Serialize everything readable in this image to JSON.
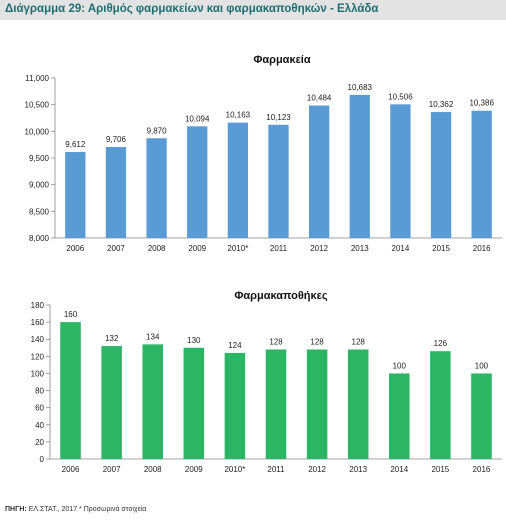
{
  "header": {
    "title": "Διάγραμμα 29: Αριθμός φαρμακείων και φαρμακαποθηκών - Ελλάδα"
  },
  "footer": {
    "source_label": "ΠΗΓΗ:",
    "source_text": "ΕΛ.ΣΤΑΤ., 2017 * Προσωρινά στοιχεία"
  },
  "chart_data": [
    {
      "type": "bar",
      "title": "Φαρμακεία",
      "categories": [
        "2006",
        "2007",
        "2008",
        "2009",
        "2010*",
        "2011",
        "2012",
        "2013",
        "2014",
        "2015",
        "2016"
      ],
      "values": [
        9612,
        9706,
        9870,
        10094,
        10163,
        10123,
        10484,
        10683,
        10506,
        10362,
        10386
      ],
      "value_labels": [
        "9,612",
        "9,706",
        "9,870",
        "10,094",
        "10,163",
        "10,123",
        "10,484",
        "10,683",
        "10,506",
        "10,362",
        "10,386"
      ],
      "ylim": [
        8000,
        11000
      ],
      "yticks": [
        8000,
        8500,
        9000,
        9500,
        10000,
        10500,
        11000
      ],
      "ytick_labels": [
        "8,000",
        "8,500",
        "9,000",
        "9,500",
        "10,000",
        "10,500",
        "11,000"
      ],
      "color": "#5b9bd5",
      "xlabel": "",
      "ylabel": "",
      "grid": false,
      "legend": "none"
    },
    {
      "type": "bar",
      "title": "Φαρμακαποθήκες",
      "categories": [
        "2006",
        "2007",
        "2008",
        "2009",
        "2010*",
        "2011",
        "2012",
        "2013",
        "2014",
        "2015",
        "2016"
      ],
      "values": [
        160,
        132,
        134,
        130,
        124,
        128,
        128,
        128,
        100,
        126,
        100
      ],
      "value_labels": [
        "160",
        "132",
        "134",
        "130",
        "124",
        "128",
        "128",
        "128",
        "100",
        "126",
        "100"
      ],
      "ylim": [
        0,
        180
      ],
      "yticks": [
        0,
        20,
        40,
        60,
        80,
        100,
        120,
        140,
        160,
        180
      ],
      "ytick_labels": [
        "0",
        "20",
        "40",
        "60",
        "80",
        "100",
        "120",
        "140",
        "160",
        "180"
      ],
      "color": "#2bb565",
      "xlabel": "",
      "ylabel": "",
      "grid": false,
      "legend": "none"
    }
  ]
}
